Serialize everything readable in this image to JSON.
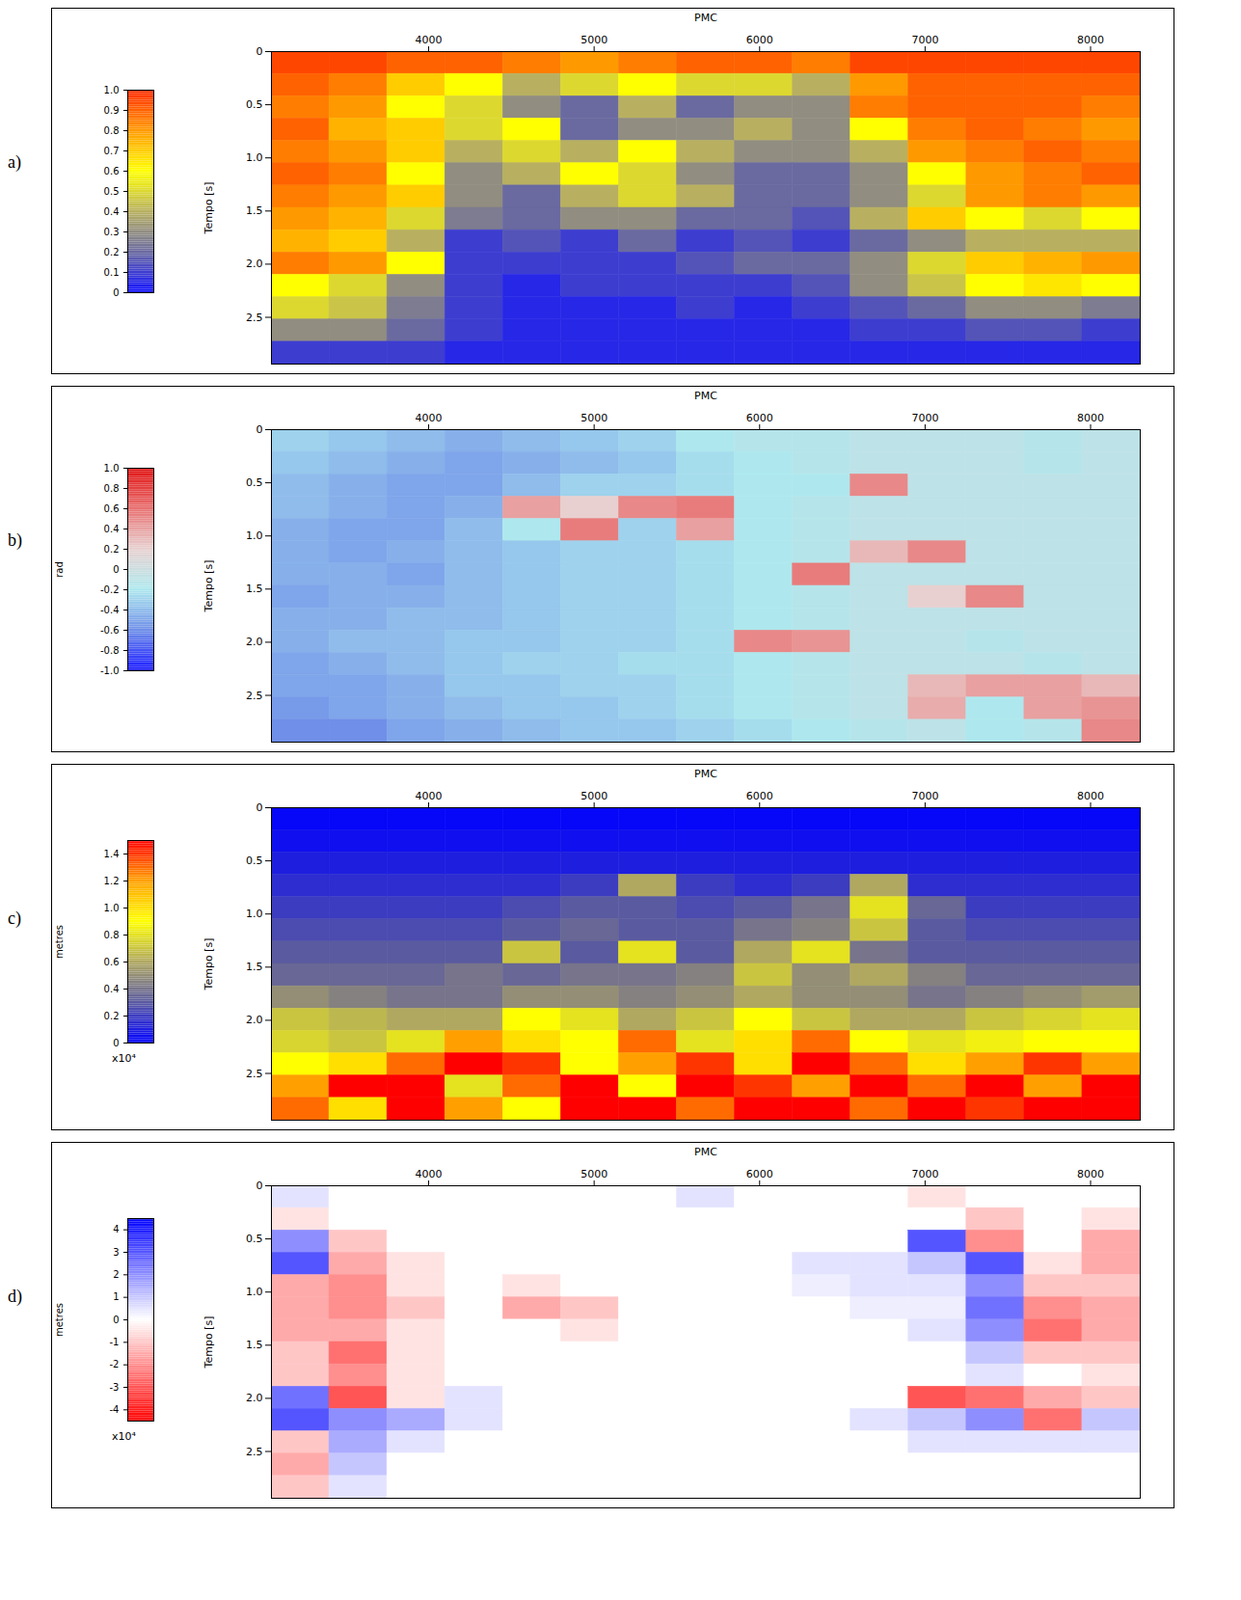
{
  "chart_data": [
    {
      "type": "heatmap",
      "panel": "a)",
      "x_label": "PMC",
      "y_label": "Tempo [s]",
      "xlim": [
        3050,
        8300
      ],
      "xticks": [
        4000,
        5000,
        6000,
        7000,
        8000
      ],
      "ylim": [
        0,
        2.94
      ],
      "yticks": [
        0,
        0.5,
        {
          "value": 1,
          "label": "1.0"
        },
        1.5,
        {
          "value": 2,
          "label": "2.0"
        },
        2.5
      ],
      "x": [
        3225,
        3575,
        3925,
        4275,
        4625,
        4975,
        5325,
        5675,
        6025,
        6375,
        6725,
        7075,
        7425,
        7775,
        8125
      ],
      "y": [
        0.105,
        0.315,
        0.525,
        0.735,
        0.945,
        1.155,
        1.365,
        1.575,
        1.785,
        1.995,
        2.205,
        2.415,
        2.625,
        2.835
      ],
      "values": [
        [
          0.95,
          0.95,
          0.9,
          0.9,
          0.85,
          0.8,
          0.85,
          0.9,
          0.9,
          0.85,
          0.95,
          0.95,
          0.95,
          0.95,
          0.95
        ],
        [
          0.9,
          0.85,
          0.7,
          0.6,
          0.4,
          0.5,
          0.6,
          0.5,
          0.5,
          0.4,
          0.8,
          0.9,
          0.9,
          0.9,
          0.9
        ],
        [
          0.85,
          0.8,
          0.6,
          0.5,
          0.3,
          0.2,
          0.4,
          0.2,
          0.3,
          0.3,
          0.85,
          0.9,
          0.9,
          0.9,
          0.85
        ],
        [
          0.9,
          0.75,
          0.7,
          0.5,
          0.6,
          0.2,
          0.3,
          0.3,
          0.4,
          0.3,
          0.6,
          0.85,
          0.9,
          0.85,
          0.8
        ],
        [
          0.85,
          0.8,
          0.7,
          0.4,
          0.5,
          0.4,
          0.6,
          0.4,
          0.3,
          0.3,
          0.4,
          0.8,
          0.85,
          0.9,
          0.85
        ],
        [
          0.9,
          0.85,
          0.6,
          0.3,
          0.4,
          0.6,
          0.5,
          0.3,
          0.2,
          0.2,
          0.3,
          0.6,
          0.8,
          0.85,
          0.9
        ],
        [
          0.85,
          0.8,
          0.7,
          0.3,
          0.2,
          0.4,
          0.5,
          0.4,
          0.2,
          0.2,
          0.3,
          0.5,
          0.8,
          0.85,
          0.8
        ],
        [
          0.8,
          0.75,
          0.5,
          0.25,
          0.2,
          0.3,
          0.3,
          0.2,
          0.2,
          0.15,
          0.4,
          0.7,
          0.6,
          0.5,
          0.6
        ],
        [
          0.75,
          0.7,
          0.4,
          0.1,
          0.15,
          0.1,
          0.2,
          0.1,
          0.15,
          0.1,
          0.2,
          0.3,
          0.4,
          0.4,
          0.4
        ],
        [
          0.85,
          0.8,
          0.6,
          0.1,
          0.1,
          0.1,
          0.1,
          0.15,
          0.2,
          0.2,
          0.3,
          0.5,
          0.7,
          0.75,
          0.8
        ],
        [
          0.6,
          0.5,
          0.3,
          0.1,
          0.05,
          0.1,
          0.1,
          0.1,
          0.1,
          0.15,
          0.3,
          0.45,
          0.6,
          0.65,
          0.6
        ],
        [
          0.5,
          0.45,
          0.25,
          0.1,
          0.05,
          0.05,
          0.05,
          0.1,
          0.05,
          0.1,
          0.15,
          0.2,
          0.3,
          0.3,
          0.25
        ],
        [
          0.3,
          0.3,
          0.2,
          0.1,
          0.05,
          0.05,
          0.05,
          0.05,
          0.05,
          0.05,
          0.1,
          0.1,
          0.15,
          0.15,
          0.1
        ],
        [
          0.1,
          0.1,
          0.1,
          0.05,
          0.05,
          0.05,
          0.05,
          0.05,
          0.05,
          0.05,
          0.05,
          0.05,
          0.05,
          0.05,
          0.05
        ]
      ],
      "colorbar": {
        "range": [
          0,
          1
        ],
        "ticks": [
          0,
          0.1,
          0.2,
          0.3,
          0.4,
          0.5,
          0.6,
          0.7,
          0.8,
          0.9,
          {
            "value": 1,
            "label": "1.0"
          }
        ],
        "colors": [
          "#1010ff",
          "#6a6aa0",
          "#b8b060",
          "#ffff00",
          "#ff9900",
          "#ff2a00"
        ]
      }
    },
    {
      "type": "heatmap",
      "panel": "b)",
      "x_label": "PMC",
      "y_label": "Tempo [s]",
      "xlim": [
        3050,
        8300
      ],
      "xticks": [
        4000,
        5000,
        6000,
        7000,
        8000
      ],
      "ylim": [
        0,
        2.94
      ],
      "yticks": [
        0,
        0.5,
        {
          "value": 1,
          "label": "1.0"
        },
        1.5,
        {
          "value": 2,
          "label": "2.0"
        },
        2.5
      ],
      "x": [
        3225,
        3575,
        3925,
        4275,
        4625,
        4975,
        5325,
        5675,
        6025,
        6375,
        6725,
        7075,
        7425,
        7775,
        8125
      ],
      "y": [
        0.105,
        0.315,
        0.525,
        0.735,
        0.945,
        1.155,
        1.365,
        1.575,
        1.785,
        1.995,
        2.205,
        2.415,
        2.625,
        2.835
      ],
      "values": [
        [
          -0.3,
          -0.35,
          -0.4,
          -0.45,
          -0.4,
          -0.35,
          -0.3,
          -0.2,
          -0.15,
          -0.15,
          -0.1,
          -0.1,
          -0.1,
          -0.15,
          -0.1
        ],
        [
          -0.35,
          -0.4,
          -0.45,
          -0.5,
          -0.45,
          -0.4,
          -0.35,
          -0.25,
          -0.2,
          -0.15,
          -0.1,
          -0.1,
          -0.1,
          -0.15,
          -0.1
        ],
        [
          -0.4,
          -0.45,
          -0.5,
          -0.5,
          -0.4,
          -0.3,
          -0.3,
          -0.25,
          -0.2,
          -0.2,
          0.5,
          -0.1,
          -0.1,
          -0.1,
          -0.1
        ],
        [
          -0.4,
          -0.45,
          -0.5,
          -0.45,
          0.4,
          0.2,
          0.5,
          0.55,
          -0.2,
          -0.15,
          -0.1,
          -0.1,
          -0.1,
          -0.1,
          -0.1
        ],
        [
          -0.45,
          -0.5,
          -0.5,
          -0.4,
          -0.2,
          0.55,
          -0.3,
          0.4,
          -0.2,
          -0.15,
          -0.1,
          -0.1,
          -0.1,
          -0.1,
          -0.1
        ],
        [
          -0.45,
          -0.5,
          -0.45,
          -0.4,
          -0.35,
          -0.3,
          -0.3,
          -0.25,
          -0.2,
          -0.15,
          0.3,
          0.5,
          -0.1,
          -0.1,
          -0.1
        ],
        [
          -0.45,
          -0.45,
          -0.5,
          -0.4,
          -0.35,
          -0.3,
          -0.3,
          -0.25,
          -0.2,
          0.55,
          -0.1,
          -0.1,
          -0.1,
          -0.1,
          -0.1
        ],
        [
          -0.5,
          -0.45,
          -0.45,
          -0.4,
          -0.35,
          -0.3,
          -0.3,
          -0.25,
          -0.2,
          -0.15,
          -0.1,
          0.2,
          0.5,
          -0.1,
          -0.1
        ],
        [
          -0.45,
          -0.45,
          -0.4,
          -0.4,
          -0.35,
          -0.3,
          -0.3,
          -0.25,
          -0.2,
          -0.15,
          -0.1,
          -0.1,
          -0.1,
          -0.1,
          -0.1
        ],
        [
          -0.45,
          -0.4,
          -0.4,
          -0.35,
          -0.35,
          -0.3,
          -0.3,
          -0.25,
          0.5,
          0.45,
          -0.1,
          -0.1,
          -0.15,
          -0.1,
          -0.1
        ],
        [
          -0.5,
          -0.45,
          -0.4,
          -0.35,
          -0.3,
          -0.3,
          -0.25,
          -0.25,
          -0.2,
          -0.15,
          -0.1,
          -0.1,
          -0.1,
          -0.15,
          -0.1
        ],
        [
          -0.5,
          -0.5,
          -0.45,
          -0.35,
          -0.35,
          -0.3,
          -0.3,
          -0.25,
          -0.2,
          -0.15,
          -0.1,
          0.3,
          0.4,
          0.4,
          0.3
        ],
        [
          -0.55,
          -0.5,
          -0.45,
          -0.4,
          -0.35,
          -0.35,
          -0.3,
          -0.25,
          -0.2,
          -0.15,
          -0.1,
          0.35,
          -0.2,
          0.4,
          0.45
        ],
        [
          -0.6,
          -0.6,
          -0.5,
          -0.45,
          -0.4,
          -0.35,
          -0.35,
          -0.3,
          -0.25,
          -0.2,
          -0.15,
          -0.1,
          -0.2,
          -0.15,
          0.5
        ]
      ],
      "colorbar": {
        "label": "rad",
        "range": [
          -1,
          1
        ],
        "ticks": [
          {
            "value": -1,
            "label": "-1.0"
          },
          -0.8,
          -0.6,
          -0.4,
          -0.2,
          0,
          0.2,
          0.4,
          0.6,
          0.8,
          {
            "value": 1,
            "label": "1.0"
          }
        ],
        "colors": [
          "#1a1aff",
          "#6f8fe8",
          "#aee8ee",
          "#e8d0d0",
          "#e87070",
          "#e01010"
        ]
      }
    },
    {
      "type": "heatmap",
      "panel": "c)",
      "x_label": "PMC",
      "y_label": "Tempo [s]",
      "xlim": [
        3050,
        8300
      ],
      "xticks": [
        4000,
        5000,
        6000,
        7000,
        8000
      ],
      "ylim": [
        0,
        2.94
      ],
      "yticks": [
        0,
        0.5,
        {
          "value": 1,
          "label": "1.0"
        },
        1.5,
        {
          "value": 2,
          "label": "2.0"
        },
        2.5
      ],
      "x": [
        3225,
        3575,
        3925,
        4275,
        4625,
        4975,
        5325,
        5675,
        6025,
        6375,
        6725,
        7075,
        7425,
        7775,
        8125
      ],
      "y": [
        0.105,
        0.315,
        0.525,
        0.735,
        0.945,
        1.155,
        1.365,
        1.575,
        1.785,
        1.995,
        2.205,
        2.415,
        2.625,
        2.835
      ],
      "values": [
        [
          0.02,
          0.02,
          0.02,
          0.02,
          0.02,
          0.02,
          0.02,
          0.02,
          0.02,
          0.02,
          0.02,
          0.02,
          0.02,
          0.02,
          0.02
        ],
        [
          0.05,
          0.05,
          0.05,
          0.05,
          0.05,
          0.05,
          0.05,
          0.05,
          0.05,
          0.05,
          0.05,
          0.05,
          0.05,
          0.05,
          0.05
        ],
        [
          0.1,
          0.1,
          0.1,
          0.1,
          0.1,
          0.1,
          0.1,
          0.1,
          0.1,
          0.1,
          0.1,
          0.1,
          0.1,
          0.1,
          0.1
        ],
        [
          0.15,
          0.15,
          0.15,
          0.15,
          0.15,
          0.2,
          0.6,
          0.2,
          0.15,
          0.2,
          0.6,
          0.15,
          0.15,
          0.15,
          0.15
        ],
        [
          0.2,
          0.2,
          0.2,
          0.2,
          0.25,
          0.3,
          0.3,
          0.25,
          0.3,
          0.4,
          0.8,
          0.35,
          0.2,
          0.2,
          0.2
        ],
        [
          0.25,
          0.25,
          0.25,
          0.25,
          0.3,
          0.35,
          0.3,
          0.3,
          0.4,
          0.45,
          0.7,
          0.3,
          0.25,
          0.25,
          0.25
        ],
        [
          0.3,
          0.3,
          0.3,
          0.3,
          0.7,
          0.3,
          0.8,
          0.3,
          0.6,
          0.8,
          0.4,
          0.3,
          0.3,
          0.3,
          0.3
        ],
        [
          0.35,
          0.35,
          0.35,
          0.4,
          0.35,
          0.4,
          0.4,
          0.45,
          0.7,
          0.5,
          0.6,
          0.45,
          0.35,
          0.35,
          0.35
        ],
        [
          0.5,
          0.45,
          0.4,
          0.4,
          0.5,
          0.5,
          0.45,
          0.5,
          0.6,
          0.5,
          0.5,
          0.4,
          0.45,
          0.5,
          0.55
        ],
        [
          0.7,
          0.65,
          0.6,
          0.6,
          0.9,
          0.8,
          0.6,
          0.7,
          0.9,
          0.7,
          0.6,
          0.6,
          0.7,
          0.75,
          0.8
        ],
        [
          0.75,
          0.7,
          0.8,
          1.2,
          1.0,
          0.9,
          1.3,
          0.8,
          1.0,
          1.3,
          0.9,
          0.8,
          0.85,
          0.9,
          0.9
        ],
        [
          0.9,
          1.0,
          1.3,
          1.5,
          1.4,
          0.9,
          1.2,
          1.4,
          1.0,
          1.5,
          1.3,
          1.0,
          1.2,
          1.4,
          1.2
        ],
        [
          1.2,
          1.5,
          1.5,
          0.8,
          1.3,
          1.5,
          0.9,
          1.5,
          1.4,
          1.2,
          1.5,
          1.3,
          1.5,
          1.2,
          1.5
        ],
        [
          1.3,
          1.0,
          1.5,
          1.2,
          0.9,
          1.5,
          1.5,
          1.3,
          1.5,
          1.5,
          1.3,
          1.5,
          1.4,
          1.5,
          1.5
        ]
      ],
      "colorbar": {
        "label": "metres",
        "multiplier": "x10⁴",
        "range": [
          0,
          1.5
        ],
        "ticks": [
          0,
          0.2,
          0.4,
          0.6,
          0.8,
          {
            "value": 1,
            "label": "1.0"
          },
          1.2,
          1.4
        ],
        "colors": [
          "#0000ff",
          "#5a5aa0",
          "#b0a860",
          "#ffff00",
          "#ffa000",
          "#ff0000"
        ]
      }
    },
    {
      "type": "heatmap",
      "panel": "d)",
      "x_label": "PMC",
      "y_label": "Tempo [s]",
      "xlim": [
        3050,
        8300
      ],
      "xticks": [
        4000,
        5000,
        6000,
        7000,
        8000
      ],
      "ylim": [
        0,
        2.94
      ],
      "yticks": [
        0,
        0.5,
        {
          "value": 1,
          "label": "1.0"
        },
        1.5,
        {
          "value": 2,
          "label": "2.0"
        },
        2.5
      ],
      "x": [
        3225,
        3575,
        3925,
        4275,
        4625,
        4975,
        5325,
        5675,
        6025,
        6375,
        6725,
        7075,
        7425,
        7775,
        8125
      ],
      "y": [
        0.105,
        0.315,
        0.525,
        0.735,
        0.945,
        1.155,
        1.365,
        1.575,
        1.785,
        1.995,
        2.205,
        2.415,
        2.625,
        2.835
      ],
      "values": [
        [
          0.5,
          0,
          0,
          0,
          0,
          0,
          0,
          0.5,
          0,
          0,
          0,
          -0.5,
          0,
          0,
          0
        ],
        [
          -0.5,
          0,
          0,
          0,
          0,
          0,
          0,
          0,
          0,
          0,
          0,
          0,
          -1,
          0,
          -0.5
        ],
        [
          2,
          -1,
          0,
          0,
          0,
          0,
          0,
          0,
          0,
          0,
          0,
          3,
          -2,
          0,
          -1.5
        ],
        [
          3,
          -1.5,
          -0.5,
          0,
          0,
          0,
          0,
          0,
          0,
          0.5,
          0.5,
          1,
          3,
          -0.5,
          -1.5
        ],
        [
          -1.5,
          -2,
          -0.5,
          0,
          -0.5,
          0,
          0,
          0,
          0,
          0.3,
          0.5,
          0.5,
          2,
          -1,
          -1
        ],
        [
          -1.5,
          -2,
          -1,
          0,
          -1.5,
          -1,
          0,
          0,
          0,
          0,
          0.3,
          0.3,
          2.5,
          -2,
          -1.5
        ],
        [
          -1.5,
          -1.5,
          -0.5,
          0,
          0,
          -0.5,
          0,
          0,
          0,
          0,
          0,
          0.5,
          2,
          -2.5,
          -1.5
        ],
        [
          -1,
          -2.5,
          -0.5,
          0,
          0,
          0,
          0,
          0,
          0,
          0,
          0,
          0,
          1,
          -1,
          -1
        ],
        [
          -1,
          -2,
          -0.5,
          0,
          0,
          0,
          0,
          0,
          0,
          0,
          0,
          0,
          0.5,
          0,
          -0.5
        ],
        [
          2.5,
          -3,
          -0.5,
          0.5,
          0,
          0,
          0,
          0,
          0,
          0,
          0,
          -3,
          -2.5,
          -1.5,
          -1
        ],
        [
          3,
          2,
          1.5,
          0.5,
          0,
          0,
          0,
          0,
          0,
          0,
          0.5,
          1,
          2,
          -2.5,
          1
        ],
        [
          -1,
          1.5,
          0.5,
          0,
          0,
          0,
          0,
          0,
          0,
          0,
          0,
          0.5,
          0.5,
          0.5,
          0.5
        ],
        [
          -1.5,
          1,
          0,
          0,
          0,
          0,
          0,
          0,
          0,
          0,
          0,
          0,
          0,
          0,
          0
        ],
        [
          -1,
          0.5,
          0,
          0,
          0,
          0,
          0,
          0,
          0,
          0,
          0,
          0,
          0,
          0,
          0
        ]
      ],
      "colorbar": {
        "label": "metres",
        "multiplier": "x10⁴",
        "range": [
          -4.5,
          4.5
        ],
        "ticks": [
          -4,
          -3,
          -2,
          -1,
          0,
          1,
          2,
          3,
          4
        ],
        "colors": [
          "#ff0000",
          "#ffffff",
          "#0000ff"
        ]
      }
    }
  ]
}
